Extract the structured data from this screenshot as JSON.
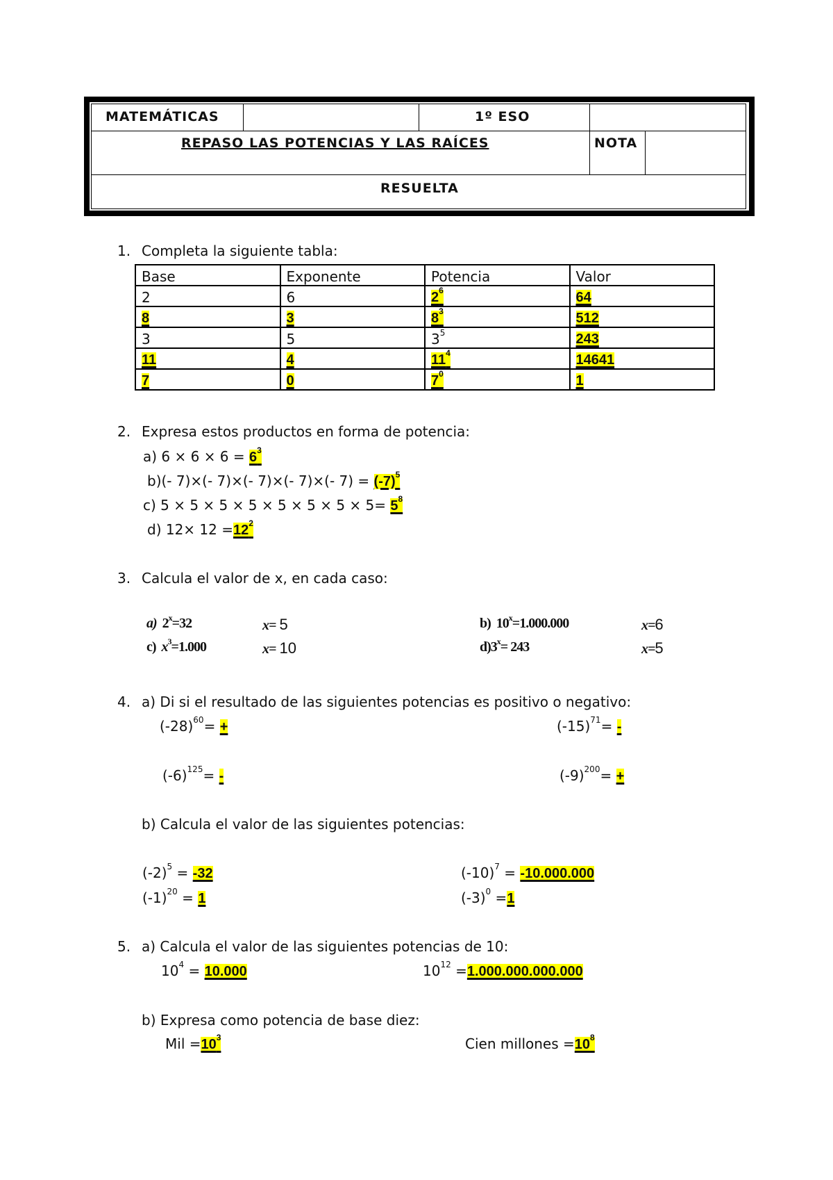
{
  "header": {
    "subject": "MATEMÁTICAS",
    "course": "1º ESO",
    "title": "REPASO LAS POTENCIAS Y LAS RAÍCES",
    "nota": "NOTA",
    "resuelta": "RESUELTA"
  },
  "s1": {
    "num": "1.",
    "prompt": "Completa la siguiente tabla:",
    "headers": [
      "Base",
      "Exponente",
      "Potencia",
      "Valor"
    ],
    "rows": [
      {
        "base": "2",
        "exp": "6",
        "pot_b": "2",
        "pot_e": "6",
        "valor": "64"
      },
      {
        "base": "8",
        "exp": "3",
        "pot_b": "8",
        "pot_e": "3",
        "valor": "512"
      },
      {
        "base": "3",
        "exp": "5",
        "pot_b": "3",
        "pot_e": "5",
        "valor": "243"
      },
      {
        "base": "11",
        "exp": "4",
        "pot_b": "11",
        "pot_e": "4",
        "valor": "14641"
      },
      {
        "base": "7",
        "exp": "0",
        "pot_b": "7",
        "pot_e": "0",
        "valor": "1"
      }
    ]
  },
  "s2": {
    "num": "2.",
    "prompt": "Expresa estos productos en forma de potencia:",
    "items": [
      {
        "q": "a) 6 × 6 × 6 = ",
        "ab": "6",
        "ae": "3"
      },
      {
        "q": "b)(- 7)×(- 7)×(- 7)×(- 7)×(- 7) = ",
        "ab": "(-7)",
        "ae": "5"
      },
      {
        "q": "c) 5 × 5 × 5 × 5 × 5 × 5 × 5 × 5= ",
        "ab": "5",
        "ae": "8"
      },
      {
        "q": "d) 12× 12 =",
        "ab": "12",
        "ae": "2"
      }
    ]
  },
  "s3": {
    "num": "3.",
    "prompt": "Calcula el valor de  x, en cada caso:",
    "items": [
      {
        "label": "a)",
        "eq_b": "2",
        "eq_e": "x",
        "eq_r": "=32",
        "xl": "x=",
        "x": "5"
      },
      {
        "label": "b)",
        "eq_b": "10",
        "eq_e": "x",
        "eq_r": "=1.000.000",
        "xl": "x=",
        "x": "6"
      },
      {
        "label": "c)",
        "eq_b": "x",
        "eq_e": "3",
        "eq_r": "=1.000",
        "xl": "x=",
        "x": "10"
      },
      {
        "label": "d)",
        "eq_b": "3",
        "eq_e": "x",
        "eq_r": "= 243",
        "xl": "x=",
        "x": "5"
      }
    ]
  },
  "s4": {
    "num": "4.",
    "a_prompt": "a) Di si el resultado de las siguientes potencias es positivo o negativo:",
    "signs": [
      {
        "b": "(-28)",
        "e": "60",
        "eq": "= ",
        "a": "+"
      },
      {
        "b": "(-15)",
        "e": "71",
        "eq": "= ",
        "a": "-"
      },
      {
        "b": "(-6)",
        "e": "125",
        "eq": "= ",
        "a": "-"
      },
      {
        "b": "(-9)",
        "e": "200",
        "eq": "= ",
        "a": "+"
      }
    ],
    "b_prompt": "b) Calcula el valor de las siguientes potencias:",
    "values": [
      {
        "b": "(-2)",
        "e": "5",
        "eq": " = ",
        "a": "-32"
      },
      {
        "b": "(-10)",
        "e": "7",
        "eq": " = ",
        "a": "-10.000.000"
      },
      {
        "b": "(-1)",
        "e": "20",
        "eq": " = ",
        "a": "1"
      },
      {
        "b": "(-3)",
        "e": "0",
        "eq": " =",
        "a": "1"
      }
    ]
  },
  "s5": {
    "num": "5.",
    "a_prompt": "a) Calcula el valor de las siguientes potencias de 10:",
    "a_items": [
      {
        "b": "10",
        "e": "4",
        "eq": " = ",
        "a": "10.000"
      },
      {
        "b": "10",
        "e": "12",
        "eq": " =",
        "a": "1.000.000.000.000"
      }
    ],
    "b_prompt": "b) Expresa como potencia de base diez:",
    "b_items": [
      {
        "q": "Mil =",
        "ab": "10",
        "ae": "3"
      },
      {
        "q": "Cien millones =",
        "ab": "10",
        "ae": "8"
      }
    ]
  }
}
